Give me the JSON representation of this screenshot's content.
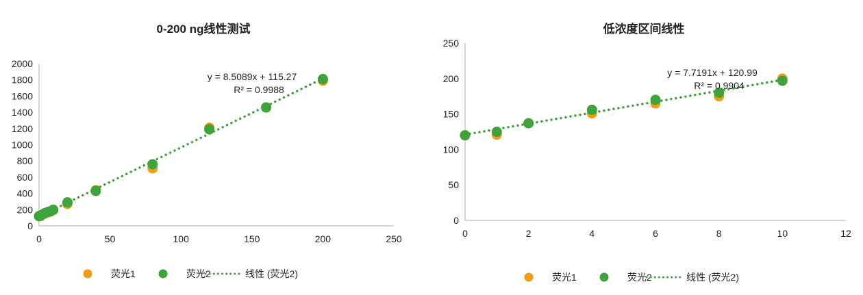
{
  "colors": {
    "series1": "#f39c12",
    "series2": "#3ea33a",
    "axis": "#c8c8c8"
  },
  "chart_data": [
    {
      "type": "scatter",
      "title": "0-200 ng线性测试",
      "xlim": [
        0,
        250
      ],
      "ylim": [
        0,
        2000
      ],
      "xticks": [
        0,
        50,
        100,
        150,
        200,
        250
      ],
      "yticks": [
        0,
        200,
        400,
        600,
        800,
        1000,
        1200,
        1400,
        1600,
        1800,
        2000
      ],
      "grid": false,
      "legend_placement": "bottom",
      "x": [
        0,
        1,
        2,
        4,
        6,
        8,
        10,
        20,
        40,
        80,
        120,
        160,
        200
      ],
      "series": [
        {
          "name": "荧光1",
          "values": [
            120,
            121,
            137,
            151,
            165,
            175,
            200,
            270,
            440,
            710,
            1210,
            1460,
            1790
          ]
        },
        {
          "name": "荧光2",
          "values": [
            120,
            125,
            137,
            156,
            170,
            180,
            197,
            290,
            430,
            760,
            1190,
            1460,
            1810
          ]
        }
      ],
      "trendline": {
        "name": "线性 (荧光2)",
        "slope": 8.5089,
        "intercept": 115.27,
        "equation": "y = 8.5089x + 115.27",
        "r2": "R² = 0.9988"
      }
    },
    {
      "type": "scatter",
      "title": "低浓度区间线性",
      "xlim": [
        0,
        12
      ],
      "ylim": [
        0,
        250
      ],
      "xticks": [
        0,
        2,
        4,
        6,
        8,
        10,
        12
      ],
      "yticks": [
        0,
        50,
        100,
        150,
        200,
        250
      ],
      "grid": false,
      "legend_placement": "bottom",
      "x": [
        0,
        1,
        2,
        4,
        6,
        8,
        10
      ],
      "series": [
        {
          "name": "荧光1",
          "values": [
            120,
            121,
            137,
            151,
            165,
            175,
            200
          ]
        },
        {
          "name": "荧光2",
          "values": [
            120,
            125,
            137,
            156,
            170,
            180,
            197
          ]
        }
      ],
      "trendline": {
        "name": "线性 (荧光2)",
        "slope": 7.7191,
        "intercept": 120.99,
        "equation": "y = 7.7191x + 120.99",
        "r2": "R² = 0.9904"
      }
    }
  ]
}
